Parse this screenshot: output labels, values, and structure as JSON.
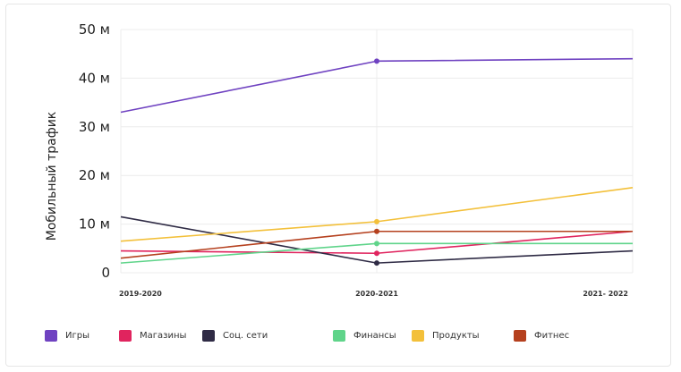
{
  "chart_data": {
    "type": "line",
    "ylabel": "Мобильный трафик",
    "x": [
      "2019-2020",
      "2020-2021",
      "2021- 2022"
    ],
    "y_ticks": [
      "0",
      "10 м",
      "20 м",
      "30 м",
      "40 м",
      "50 м"
    ],
    "ylim": [
      0,
      50
    ],
    "grid": true,
    "legend_position": "bottom",
    "series": [
      {
        "name": "Игры",
        "color": "#6f42c1",
        "values": [
          33,
          43.5,
          44
        ]
      },
      {
        "name": "Магазины",
        "color": "#e0245e",
        "values": [
          4.5,
          4,
          8.5
        ]
      },
      {
        "name": "Соц.  сети",
        "color": "#2f2b45",
        "values": [
          11.5,
          2,
          4.5
        ]
      },
      {
        "name": "Финансы",
        "color": "#5fd48a",
        "values": [
          2,
          6,
          6
        ]
      },
      {
        "name": "Продукты",
        "color": "#f3c03a",
        "values": [
          6.5,
          10.5,
          17.5
        ]
      },
      {
        "name": "Фитнес",
        "color": "#b5401e",
        "values": [
          3,
          8.5,
          8.5
        ]
      }
    ]
  }
}
